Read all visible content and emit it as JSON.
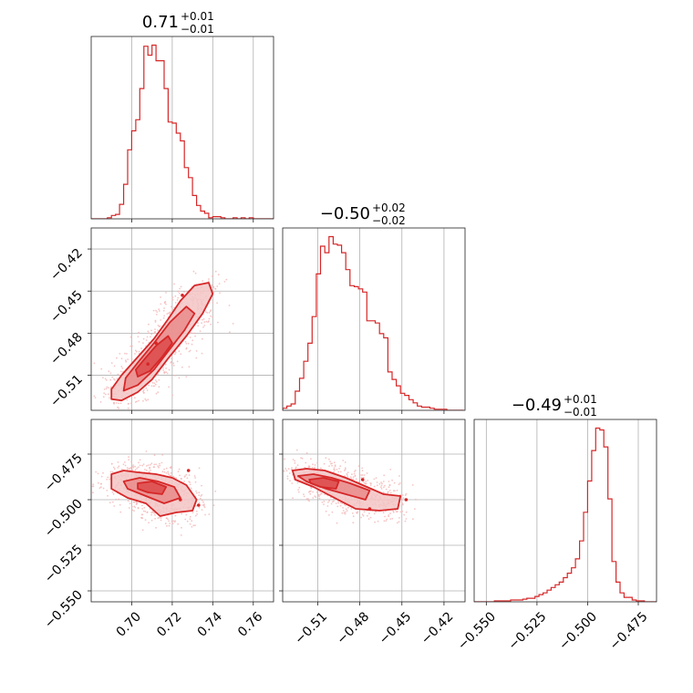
{
  "figure": {
    "accent_color": "#d62728",
    "scatter_color": "#f4b6b6",
    "fill_colors": [
      "#f3c4c4",
      "#e98b8b",
      "#dd4a4a"
    ]
  },
  "chart_data": [
    {
      "type": "histogram",
      "panel": "diag-0",
      "title": {
        "value": "0.71",
        "plus": "+0.01",
        "minus": "−0.01"
      },
      "xlim": [
        0.68,
        0.77
      ],
      "xticks": [
        0.7,
        0.72,
        0.74,
        0.76
      ],
      "xtick_labels": [],
      "grid": true,
      "bins_x": [
        0.68,
        0.682,
        0.684,
        0.686,
        0.688,
        0.69,
        0.692,
        0.694,
        0.696,
        0.698,
        0.7,
        0.702,
        0.704,
        0.706,
        0.708,
        0.71,
        0.712,
        0.714,
        0.716,
        0.718,
        0.72,
        0.722,
        0.724,
        0.726,
        0.728,
        0.73,
        0.732,
        0.734,
        0.736,
        0.738,
        0.74,
        0.742,
        0.744,
        0.746,
        0.748,
        0.75,
        0.752,
        0.754,
        0.756,
        0.758,
        0.76,
        0.762,
        0.764,
        0.766,
        0.768,
        0.77
      ],
      "counts": [
        0,
        0,
        0,
        0,
        1,
        3,
        4,
        13,
        31,
        62,
        79,
        89,
        117,
        155,
        147,
        156,
        142,
        142,
        117,
        87,
        86,
        77,
        70,
        46,
        37,
        21,
        12,
        7,
        5,
        1,
        2,
        2,
        1,
        0,
        0,
        1,
        0,
        1,
        0,
        1,
        0,
        0,
        0,
        0,
        0
      ]
    },
    {
      "type": "scatter+contour",
      "panel": "row1-col0",
      "xlim": [
        0.68,
        0.77
      ],
      "ylim": [
        -0.535,
        -0.405
      ],
      "xticks": [
        0.7,
        0.72,
        0.74,
        0.76
      ],
      "yticks": [
        -0.42,
        -0.45,
        -0.48,
        -0.51
      ],
      "ytick_labels": [
        "−0.42",
        "−0.45",
        "−0.48",
        "−0.51"
      ],
      "grid": true,
      "contours": [
        {
          "level": "outer",
          "points": [
            [
              0.69,
              -0.527
            ],
            [
              0.695,
              -0.528
            ],
            [
              0.703,
              -0.522
            ],
            [
              0.71,
              -0.513
            ],
            [
              0.718,
              -0.498
            ],
            [
              0.727,
              -0.482
            ],
            [
              0.735,
              -0.466
            ],
            [
              0.74,
              -0.452
            ],
            [
              0.738,
              -0.444
            ],
            [
              0.731,
              -0.446
            ],
            [
              0.724,
              -0.457
            ],
            [
              0.718,
              -0.47
            ],
            [
              0.711,
              -0.484
            ],
            [
              0.703,
              -0.497
            ],
            [
              0.695,
              -0.51
            ],
            [
              0.69,
              -0.52
            ]
          ]
        },
        {
          "level": "middle",
          "points": [
            [
              0.696,
              -0.521
            ],
            [
              0.703,
              -0.517
            ],
            [
              0.711,
              -0.506
            ],
            [
              0.719,
              -0.491
            ],
            [
              0.726,
              -0.478
            ],
            [
              0.731,
              -0.466
            ],
            [
              0.727,
              -0.461
            ],
            [
              0.719,
              -0.472
            ],
            [
              0.711,
              -0.487
            ],
            [
              0.703,
              -0.501
            ],
            [
              0.697,
              -0.512
            ]
          ]
        },
        {
          "level": "inner",
          "points": [
            [
              0.703,
              -0.511
            ],
            [
              0.709,
              -0.507
            ],
            [
              0.715,
              -0.497
            ],
            [
              0.72,
              -0.487
            ],
            [
              0.718,
              -0.482
            ],
            [
              0.712,
              -0.489
            ],
            [
              0.706,
              -0.499
            ],
            [
              0.702,
              -0.506
            ]
          ]
        }
      ],
      "extra_markers": [
        [
          0.725,
          -0.453
        ],
        [
          0.712,
          -0.487
        ],
        [
          0.708,
          -0.502
        ]
      ]
    },
    {
      "type": "histogram",
      "panel": "diag-1",
      "title": {
        "value": "−0.50",
        "plus": "+0.02",
        "minus": "−0.02"
      },
      "xlim": [
        -0.535,
        -0.405
      ],
      "xticks": [
        -0.51,
        -0.48,
        -0.45,
        -0.42
      ],
      "xtick_labels": [],
      "grid": true,
      "bins_x": [
        -0.535,
        -0.532,
        -0.529,
        -0.526,
        -0.523,
        -0.52,
        -0.517,
        -0.514,
        -0.511,
        -0.508,
        -0.505,
        -0.502,
        -0.499,
        -0.496,
        -0.493,
        -0.49,
        -0.487,
        -0.484,
        -0.481,
        -0.478,
        -0.475,
        -0.472,
        -0.469,
        -0.466,
        -0.463,
        -0.46,
        -0.457,
        -0.454,
        -0.451,
        -0.448,
        -0.445,
        -0.442,
        -0.439,
        -0.436,
        -0.433,
        -0.43,
        -0.427,
        -0.424,
        -0.421,
        -0.418,
        -0.415,
        -0.412,
        -0.409,
        -0.406
      ],
      "counts": [
        2,
        4,
        6,
        18,
        30,
        46,
        63,
        88,
        128,
        154,
        148,
        163,
        156,
        155,
        148,
        132,
        117,
        116,
        114,
        111,
        84,
        84,
        82,
        72,
        68,
        36,
        29,
        23,
        16,
        14,
        10,
        7,
        4,
        3,
        3,
        2,
        1,
        1,
        1,
        0,
        0,
        0,
        0
      ]
    },
    {
      "type": "scatter+contour",
      "panel": "row2-col0",
      "xlim": [
        0.68,
        0.77
      ],
      "ylim": [
        -0.556,
        -0.456
      ],
      "xticks": [
        0.7,
        0.72,
        0.74,
        0.76
      ],
      "xtick_labels": [
        "0.70",
        "0.72",
        "0.74",
        "0.76"
      ],
      "yticks": [
        -0.475,
        -0.5,
        -0.525,
        -0.55
      ],
      "ytick_labels": [
        "−0.475",
        "−0.500",
        "−0.525",
        "−0.550"
      ],
      "grid": true,
      "contours": [
        {
          "level": "outer",
          "points": [
            [
              0.69,
              -0.486
            ],
            [
              0.696,
              -0.484
            ],
            [
              0.703,
              -0.485
            ],
            [
              0.712,
              -0.486
            ],
            [
              0.72,
              -0.488
            ],
            [
              0.727,
              -0.492
            ],
            [
              0.732,
              -0.5
            ],
            [
              0.73,
              -0.506
            ],
            [
              0.722,
              -0.507
            ],
            [
              0.714,
              -0.509
            ],
            [
              0.707,
              -0.502
            ],
            [
              0.698,
              -0.499
            ],
            [
              0.69,
              -0.494
            ]
          ]
        },
        {
          "level": "middle",
          "points": [
            [
              0.696,
              -0.49
            ],
            [
              0.704,
              -0.488
            ],
            [
              0.713,
              -0.49
            ],
            [
              0.721,
              -0.493
            ],
            [
              0.724,
              -0.499
            ],
            [
              0.716,
              -0.502
            ],
            [
              0.707,
              -0.498
            ],
            [
              0.698,
              -0.494
            ]
          ]
        },
        {
          "level": "inner",
          "points": [
            [
              0.703,
              -0.491
            ],
            [
              0.71,
              -0.49
            ],
            [
              0.717,
              -0.493
            ],
            [
              0.715,
              -0.497
            ],
            [
              0.708,
              -0.496
            ],
            [
              0.703,
              -0.494
            ]
          ]
        }
      ],
      "extra_markers": [
        [
          0.728,
          -0.484
        ],
        [
          0.724,
          -0.5
        ],
        [
          0.733,
          -0.503
        ]
      ]
    },
    {
      "type": "scatter+contour",
      "panel": "row2-col1",
      "xlim": [
        -0.535,
        -0.405
      ],
      "ylim": [
        -0.556,
        -0.456
      ],
      "xticks": [
        -0.51,
        -0.48,
        -0.45,
        -0.42
      ],
      "xtick_labels": [
        "−0.51",
        "−0.48",
        "−0.45",
        "−0.42"
      ],
      "yticks": [
        -0.475,
        -0.5,
        -0.525,
        -0.55
      ],
      "ytick_labels": [],
      "grid": true,
      "contours": [
        {
          "level": "outer",
          "points": [
            [
              -0.528,
              -0.484
            ],
            [
              -0.518,
              -0.483
            ],
            [
              -0.505,
              -0.484
            ],
            [
              -0.49,
              -0.488
            ],
            [
              -0.478,
              -0.492
            ],
            [
              -0.463,
              -0.497
            ],
            [
              -0.451,
              -0.498
            ],
            [
              -0.453,
              -0.505
            ],
            [
              -0.466,
              -0.506
            ],
            [
              -0.483,
              -0.505
            ],
            [
              -0.498,
              -0.499
            ],
            [
              -0.513,
              -0.493
            ],
            [
              -0.526,
              -0.489
            ]
          ]
        },
        {
          "level": "middle",
          "points": [
            [
              -0.524,
              -0.487
            ],
            [
              -0.513,
              -0.486
            ],
            [
              -0.5,
              -0.488
            ],
            [
              -0.487,
              -0.491
            ],
            [
              -0.473,
              -0.495
            ],
            [
              -0.476,
              -0.5
            ],
            [
              -0.49,
              -0.497
            ],
            [
              -0.504,
              -0.494
            ],
            [
              -0.518,
              -0.49
            ]
          ]
        },
        {
          "level": "inner",
          "points": [
            [
              -0.516,
              -0.489
            ],
            [
              -0.506,
              -0.488
            ],
            [
              -0.495,
              -0.49
            ],
            [
              -0.497,
              -0.494
            ],
            [
              -0.508,
              -0.493
            ],
            [
              -0.515,
              -0.491
            ]
          ]
        }
      ],
      "extra_markers": [
        [
          -0.478,
          -0.489
        ],
        [
          -0.473,
          -0.505
        ],
        [
          -0.447,
          -0.5
        ]
      ]
    },
    {
      "type": "histogram",
      "panel": "diag-2",
      "title": {
        "value": "−0.49",
        "plus": "+0.01",
        "minus": "−0.01"
      },
      "xlim": [
        -0.556,
        -0.466
      ],
      "xticks": [
        -0.55,
        -0.525,
        -0.5,
        -0.475
      ],
      "xtick_labels": [
        "−0.550",
        "−0.525",
        "−0.500",
        "−0.475"
      ],
      "grid": true,
      "bins_x": [
        -0.556,
        -0.554,
        -0.552,
        -0.55,
        -0.548,
        -0.546,
        -0.544,
        -0.542,
        -0.54,
        -0.538,
        -0.536,
        -0.534,
        -0.532,
        -0.53,
        -0.528,
        -0.526,
        -0.524,
        -0.522,
        -0.52,
        -0.518,
        -0.516,
        -0.514,
        -0.512,
        -0.51,
        -0.508,
        -0.506,
        -0.504,
        -0.502,
        -0.5,
        -0.498,
        -0.496,
        -0.494,
        -0.492,
        -0.49,
        -0.488,
        -0.486,
        -0.484,
        -0.482,
        -0.48,
        -0.478,
        -0.476,
        -0.474,
        -0.472,
        -0.47,
        -0.468,
        -0.466
      ],
      "counts": [
        0,
        0,
        0,
        0,
        0,
        1,
        1,
        1,
        1,
        2,
        2,
        2,
        3,
        4,
        4,
        6,
        8,
        10,
        13,
        16,
        19,
        22,
        27,
        32,
        38,
        48,
        68,
        100,
        135,
        169,
        194,
        192,
        173,
        115,
        45,
        22,
        10,
        5,
        5,
        2,
        1,
        1,
        0,
        0,
        0
      ]
    }
  ]
}
